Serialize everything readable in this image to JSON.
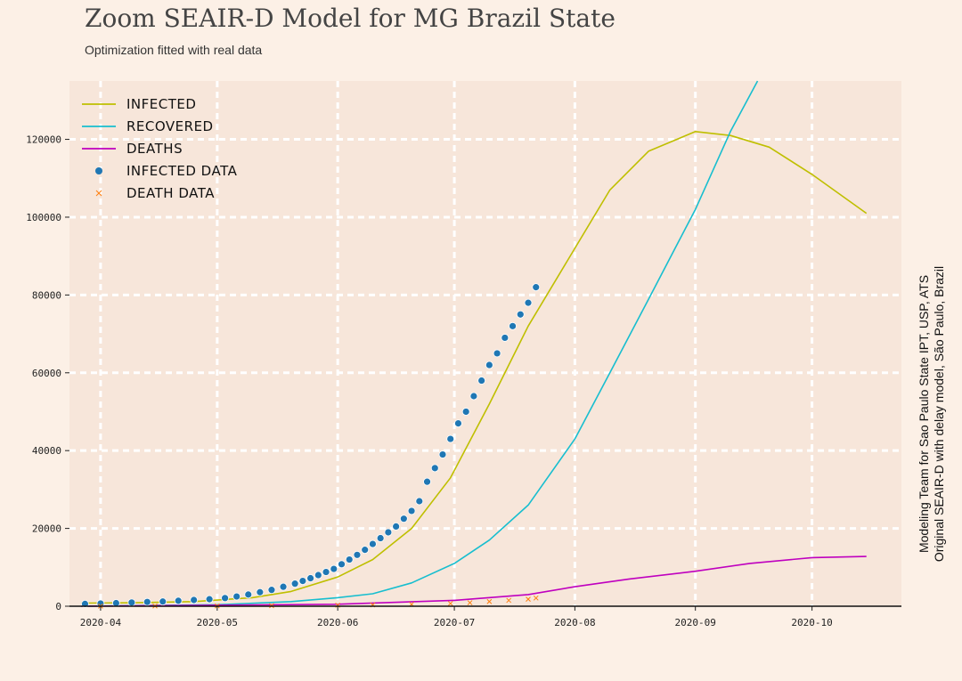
{
  "chart_data": {
    "type": "line",
    "title": "Zoom SEAIR-D Model for MG Brazil State",
    "subtitle": "Optimization fitted with real data",
    "side_text": [
      "Modeling Team for Sao Paulo State IPT, USP, ATS",
      "Original SEAIR-D with delay model, São Paulo, Brazil"
    ],
    "x_ticks": [
      "2020-04",
      "2020-05",
      "2020-06",
      "2020-07",
      "2020-08",
      "2020-09",
      "2020-10"
    ],
    "y_ticks": [
      0,
      20000,
      40000,
      60000,
      80000,
      100000,
      120000
    ],
    "xlim": [
      "2020-03-24",
      "2020-10-24"
    ],
    "ylim": [
      0,
      135000
    ],
    "grid": true,
    "legend_position": "top-left",
    "colors": {
      "infected": "#bfbf00",
      "recovered": "#17becf",
      "deaths": "#bf00bf",
      "infected_data": "#1f77b4",
      "death_data": "#ff7f0e"
    },
    "series": [
      {
        "name": "INFECTED",
        "style": "line",
        "color": "#bfbf00",
        "x": [
          "2020-03-27",
          "2020-04-10",
          "2020-04-25",
          "2020-05-10",
          "2020-05-20",
          "2020-06-01",
          "2020-06-10",
          "2020-06-20",
          "2020-06-30",
          "2020-07-10",
          "2020-07-20",
          "2020-08-01",
          "2020-08-10",
          "2020-08-20",
          "2020-09-01",
          "2020-09-10",
          "2020-09-20",
          "2020-10-01",
          "2020-10-15"
        ],
        "y": [
          800,
          900,
          1200,
          2200,
          3800,
          7500,
          12000,
          20000,
          33000,
          52000,
          72000,
          92000,
          107000,
          117000,
          122000,
          121000,
          118000,
          111000,
          101000
        ]
      },
      {
        "name": "RECOVERED",
        "style": "line",
        "color": "#17becf",
        "x": [
          "2020-03-27",
          "2020-05-01",
          "2020-05-20",
          "2020-06-01",
          "2020-06-10",
          "2020-06-20",
          "2020-07-01",
          "2020-07-10",
          "2020-07-20",
          "2020-08-01",
          "2020-08-10",
          "2020-08-20",
          "2020-09-01",
          "2020-09-10",
          "2020-09-17"
        ],
        "y": [
          0,
          400,
          1200,
          2200,
          3200,
          6000,
          11000,
          17000,
          26000,
          43000,
          60000,
          79000,
          102000,
          122000,
          136000
        ]
      },
      {
        "name": "DEATHS",
        "style": "line",
        "color": "#bf00bf",
        "x": [
          "2020-03-27",
          "2020-06-01",
          "2020-07-01",
          "2020-07-20",
          "2020-08-01",
          "2020-08-15",
          "2020-09-01",
          "2020-09-15",
          "2020-10-01",
          "2020-10-15"
        ],
        "y": [
          0,
          500,
          1500,
          3000,
          5000,
          7000,
          9000,
          11000,
          12500,
          12800
        ]
      },
      {
        "name": "INFECTED DATA",
        "style": "scatter",
        "marker": "o",
        "color": "#1f77b4",
        "x": [
          "2020-03-28",
          "2020-04-01",
          "2020-04-05",
          "2020-04-09",
          "2020-04-13",
          "2020-04-17",
          "2020-04-21",
          "2020-04-25",
          "2020-04-29",
          "2020-05-03",
          "2020-05-06",
          "2020-05-09",
          "2020-05-12",
          "2020-05-15",
          "2020-05-18",
          "2020-05-21",
          "2020-05-23",
          "2020-05-25",
          "2020-05-27",
          "2020-05-29",
          "2020-05-31",
          "2020-06-02",
          "2020-06-04",
          "2020-06-06",
          "2020-06-08",
          "2020-06-10",
          "2020-06-12",
          "2020-06-14",
          "2020-06-16",
          "2020-06-18",
          "2020-06-20",
          "2020-06-22",
          "2020-06-24",
          "2020-06-26",
          "2020-06-28",
          "2020-06-30",
          "2020-07-02",
          "2020-07-04",
          "2020-07-06",
          "2020-07-08",
          "2020-07-10",
          "2020-07-12",
          "2020-07-14",
          "2020-07-16",
          "2020-07-18",
          "2020-07-20",
          "2020-07-22"
        ],
        "y": [
          600,
          700,
          800,
          950,
          1100,
          1200,
          1400,
          1600,
          1800,
          2100,
          2500,
          3000,
          3600,
          4200,
          5000,
          5800,
          6500,
          7200,
          8000,
          8800,
          9600,
          10800,
          12000,
          13200,
          14500,
          16000,
          17500,
          19000,
          20500,
          22500,
          24500,
          27000,
          32000,
          35500,
          39000,
          43000,
          47000,
          50000,
          54000,
          58000,
          62000,
          65000,
          69000,
          72000,
          75000,
          78000,
          82000
        ]
      },
      {
        "name": "DEATH DATA",
        "style": "scatter",
        "marker": "x",
        "color": "#ff7f0e",
        "x": [
          "2020-04-01",
          "2020-04-15",
          "2020-05-01",
          "2020-05-15",
          "2020-06-01",
          "2020-06-10",
          "2020-06-20",
          "2020-06-30",
          "2020-07-05",
          "2020-07-10",
          "2020-07-15",
          "2020-07-20",
          "2020-07-22"
        ],
        "y": [
          30,
          50,
          90,
          150,
          250,
          350,
          500,
          700,
          900,
          1200,
          1500,
          1800,
          2100
        ]
      }
    ]
  }
}
